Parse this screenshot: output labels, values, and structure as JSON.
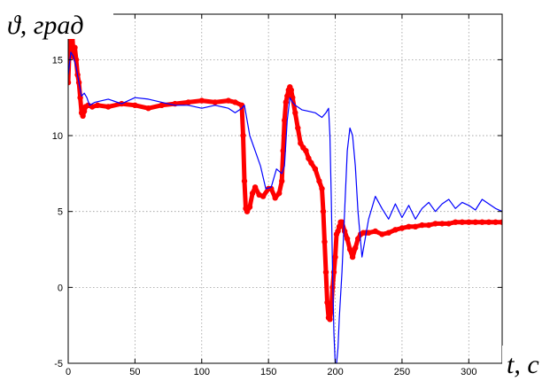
{
  "chart_data": {
    "type": "line",
    "title": "",
    "ylabel": "ϑ, град",
    "xlabel": "t, c",
    "xlim": [
      0,
      325
    ],
    "ylim": [
      -5,
      18
    ],
    "xticks": [
      0,
      50,
      100,
      150,
      200,
      250,
      300
    ],
    "yticks": [
      -5,
      0,
      5,
      10,
      15
    ],
    "grid": true,
    "legend": "none",
    "series": [
      {
        "color": "#0000ff",
        "style": "thin-noisy",
        "x": [
          0,
          2,
          4,
          6,
          8,
          10,
          12,
          14,
          16,
          20,
          30,
          40,
          50,
          60,
          70,
          80,
          90,
          100,
          110,
          120,
          125,
          130,
          132,
          134,
          136,
          140,
          144,
          148,
          152,
          156,
          160,
          162,
          164,
          166,
          168,
          170,
          175,
          180,
          185,
          190,
          193,
          195,
          196,
          197,
          198,
          199,
          200,
          201,
          202,
          203,
          205,
          207,
          209,
          211,
          213,
          215,
          217,
          219,
          220,
          222,
          225,
          230,
          235,
          240,
          245,
          250,
          255,
          260,
          265,
          270,
          275,
          280,
          285,
          290,
          295,
          300,
          305,
          310,
          315,
          320,
          325
        ],
        "y": [
          14,
          15.5,
          15.2,
          14.5,
          13.5,
          12.6,
          12.8,
          12.5,
          12,
          12.2,
          12.4,
          12.1,
          12.5,
          12.4,
          12.2,
          12,
          12,
          11.8,
          12,
          11.8,
          11.5,
          11.8,
          12,
          11,
          10,
          9,
          8,
          6.5,
          6.6,
          7.8,
          7.5,
          8,
          11,
          12.5,
          12.2,
          12,
          11.7,
          11.6,
          11.5,
          11.2,
          11.5,
          11.8,
          10,
          6,
          1,
          -3,
          -5,
          -5,
          -4,
          -2,
          1,
          5,
          9,
          10.5,
          10,
          8,
          5,
          3,
          2,
          3,
          4.5,
          6,
          5.2,
          4.5,
          5.5,
          4.6,
          5.4,
          4.5,
          5.2,
          5.6,
          5,
          5.5,
          5.8,
          5.2,
          5.6,
          5.4,
          5.1,
          5.8,
          5.5,
          5.2,
          5
        ]
      },
      {
        "color": "#ff0000",
        "style": "thick-dotted",
        "x": [
          0,
          1,
          2,
          3,
          4,
          5,
          6,
          7,
          8,
          9,
          10,
          11,
          12,
          13,
          15,
          18,
          22,
          30,
          40,
          50,
          60,
          70,
          80,
          90,
          100,
          110,
          120,
          125,
          130,
          131,
          132,
          133,
          134,
          136,
          138,
          140,
          143,
          146,
          150,
          152,
          155,
          158,
          160,
          161,
          162,
          163,
          164,
          165,
          166,
          167,
          168,
          170,
          172,
          174,
          176,
          178,
          180,
          182,
          185,
          188,
          190,
          191,
          192,
          193,
          194,
          195,
          196,
          197,
          198,
          199,
          200,
          201,
          202,
          203,
          204,
          205,
          207,
          209,
          211,
          213,
          215,
          217,
          219,
          221,
          223,
          225,
          230,
          235,
          240,
          245,
          250,
          255,
          260,
          265,
          270,
          275,
          280,
          285,
          290,
          295,
          300,
          305,
          310,
          315,
          320,
          325
        ],
        "y": [
          13.5,
          16,
          17.5,
          16.8,
          15.2,
          15.8,
          15,
          14,
          13.5,
          12.5,
          11.5,
          11.3,
          11.6,
          11.9,
          12,
          11.9,
          12,
          11.9,
          12.1,
          12,
          11.8,
          12,
          12.1,
          12.2,
          12.3,
          12.2,
          12.3,
          12.2,
          12,
          10,
          7,
          5.2,
          5,
          5.3,
          6.2,
          6.6,
          6.1,
          6,
          6.5,
          6.5,
          5.9,
          6.2,
          7,
          9,
          11,
          12.2,
          12.6,
          13,
          13.2,
          13,
          12.5,
          11.5,
          10.5,
          9.5,
          9.2,
          9,
          8.5,
          8.2,
          7.8,
          7,
          6.5,
          5,
          3,
          1,
          -1,
          -2,
          -2.1,
          -1.5,
          0,
          1,
          2,
          3.5,
          3.7,
          4,
          4.3,
          4.3,
          3.7,
          3.2,
          2.5,
          2,
          2.6,
          3.2,
          3.5,
          3.6,
          3.6,
          3.6,
          3.7,
          3.5,
          3.6,
          3.8,
          3.9,
          4,
          4,
          4.1,
          4.1,
          4.2,
          4.2,
          4.2,
          4.3,
          4.3,
          4.3,
          4.3,
          4.3,
          4.3,
          4.3,
          4.3
        ]
      }
    ]
  }
}
